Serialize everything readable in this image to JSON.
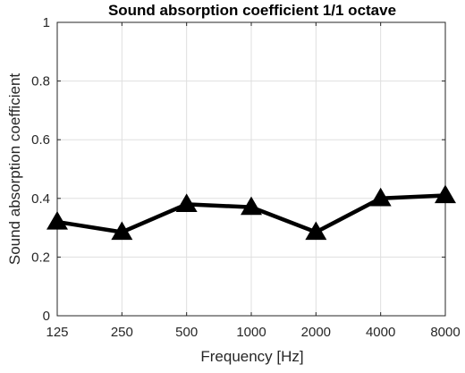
{
  "chart_data": {
    "type": "line",
    "title": "Sound absorption coefficient 1/1 octave",
    "xlabel": "Frequency [Hz]",
    "ylabel": "Sound absorption coefficient",
    "categories": [
      "125",
      "250",
      "500",
      "1000",
      "2000",
      "4000",
      "8000"
    ],
    "series": [
      {
        "values": [
          0.32,
          0.285,
          0.38,
          0.37,
          0.285,
          0.4,
          0.41
        ],
        "color": "#000000",
        "marker": "triangle"
      }
    ],
    "ylim": [
      0,
      1
    ],
    "yticks": [
      "0",
      "0.2",
      "0.4",
      "0.6",
      "0.8",
      "1"
    ],
    "grid": true,
    "legend": "none"
  }
}
